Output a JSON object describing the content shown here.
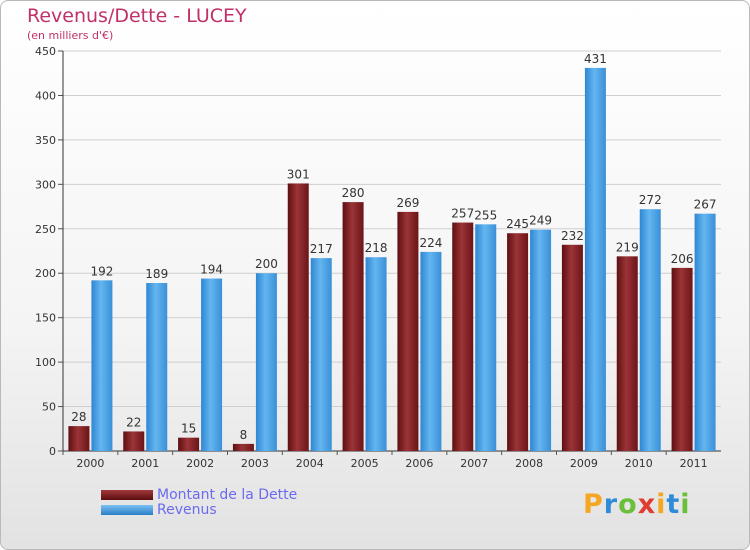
{
  "chart_data": {
    "type": "bar",
    "title": "Revenus/Dette - LUCEY",
    "subtitle": "(en milliers d'€)",
    "categories": [
      "2000",
      "2001",
      "2002",
      "2003",
      "2004",
      "2005",
      "2006",
      "2007",
      "2008",
      "2009",
      "2010",
      "2011"
    ],
    "series": [
      {
        "name": "Montant de la Dette",
        "color": "#7a1f21",
        "values": [
          28,
          22,
          15,
          8,
          301,
          280,
          269,
          257,
          245,
          232,
          219,
          206
        ]
      },
      {
        "name": "Revenus",
        "color": "#4a9fe0",
        "values": [
          192,
          189,
          194,
          200,
          217,
          218,
          224,
          255,
          249,
          431,
          272,
          267
        ]
      }
    ],
    "ylim": [
      0,
      450
    ],
    "yticks": [
      0,
      50,
      100,
      150,
      200,
      250,
      300,
      350,
      400,
      450
    ],
    "grid": true,
    "legend_position": "bottom-left"
  },
  "brand": {
    "letters": [
      "P",
      "r",
      "o",
      "x",
      "i",
      "t",
      "i"
    ],
    "colors": [
      "#f5a623",
      "#2e8bd8",
      "#6cbf3a",
      "#e03c31",
      "#f5a623",
      "#2e8bd8",
      "#6cbf3a"
    ]
  }
}
